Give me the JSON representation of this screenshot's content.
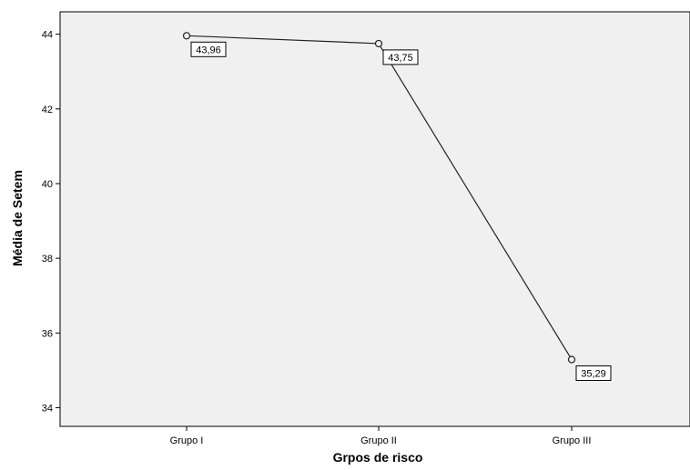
{
  "chart_data": {
    "type": "line",
    "title": "",
    "xlabel": "Grpos de risco",
    "ylabel": "Média de Setem",
    "categories": [
      "Grupo I",
      "Grupo II",
      "Grupo III"
    ],
    "series": [
      {
        "values": [
          43.96,
          43.75,
          35.29
        ],
        "data_labels": [
          "43,96",
          "43,75",
          "35,29"
        ]
      }
    ],
    "ylim": [
      33.5,
      44.6
    ],
    "yticks": [
      34,
      36,
      38,
      40,
      42,
      44
    ],
    "ytick_labels": [
      "34",
      "36",
      "38",
      "40",
      "42",
      "44"
    ],
    "grid": false,
    "legend": "none",
    "colors": {
      "plot_background": "#f0f0f0",
      "line": "#222222",
      "marker_fill": "#f0f0f0"
    }
  }
}
